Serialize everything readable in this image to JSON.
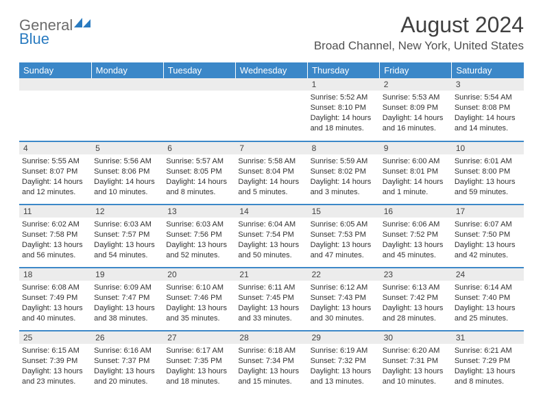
{
  "logo": {
    "part1": "General",
    "part2": "Blue"
  },
  "title": "August 2024",
  "location": "Broad Channel, New York, United States",
  "colors": {
    "header_bg": "#3b87c8",
    "header_text": "#ffffff",
    "daynum_bg": "#ececec",
    "logo_gray": "#6b6b6b",
    "logo_blue": "#2a7bc0"
  },
  "weekdays": [
    "Sunday",
    "Monday",
    "Tuesday",
    "Wednesday",
    "Thursday",
    "Friday",
    "Saturday"
  ],
  "weeks": [
    [
      null,
      null,
      null,
      null,
      {
        "day": "1",
        "sunrise": "5:52 AM",
        "sunset": "8:10 PM",
        "daylight": "14 hours and 18 minutes."
      },
      {
        "day": "2",
        "sunrise": "5:53 AM",
        "sunset": "8:09 PM",
        "daylight": "14 hours and 16 minutes."
      },
      {
        "day": "3",
        "sunrise": "5:54 AM",
        "sunset": "8:08 PM",
        "daylight": "14 hours and 14 minutes."
      }
    ],
    [
      {
        "day": "4",
        "sunrise": "5:55 AM",
        "sunset": "8:07 PM",
        "daylight": "14 hours and 12 minutes."
      },
      {
        "day": "5",
        "sunrise": "5:56 AM",
        "sunset": "8:06 PM",
        "daylight": "14 hours and 10 minutes."
      },
      {
        "day": "6",
        "sunrise": "5:57 AM",
        "sunset": "8:05 PM",
        "daylight": "14 hours and 8 minutes."
      },
      {
        "day": "7",
        "sunrise": "5:58 AM",
        "sunset": "8:04 PM",
        "daylight": "14 hours and 5 minutes."
      },
      {
        "day": "8",
        "sunrise": "5:59 AM",
        "sunset": "8:02 PM",
        "daylight": "14 hours and 3 minutes."
      },
      {
        "day": "9",
        "sunrise": "6:00 AM",
        "sunset": "8:01 PM",
        "daylight": "14 hours and 1 minute."
      },
      {
        "day": "10",
        "sunrise": "6:01 AM",
        "sunset": "8:00 PM",
        "daylight": "13 hours and 59 minutes."
      }
    ],
    [
      {
        "day": "11",
        "sunrise": "6:02 AM",
        "sunset": "7:58 PM",
        "daylight": "13 hours and 56 minutes."
      },
      {
        "day": "12",
        "sunrise": "6:03 AM",
        "sunset": "7:57 PM",
        "daylight": "13 hours and 54 minutes."
      },
      {
        "day": "13",
        "sunrise": "6:03 AM",
        "sunset": "7:56 PM",
        "daylight": "13 hours and 52 minutes."
      },
      {
        "day": "14",
        "sunrise": "6:04 AM",
        "sunset": "7:54 PM",
        "daylight": "13 hours and 50 minutes."
      },
      {
        "day": "15",
        "sunrise": "6:05 AM",
        "sunset": "7:53 PM",
        "daylight": "13 hours and 47 minutes."
      },
      {
        "day": "16",
        "sunrise": "6:06 AM",
        "sunset": "7:52 PM",
        "daylight": "13 hours and 45 minutes."
      },
      {
        "day": "17",
        "sunrise": "6:07 AM",
        "sunset": "7:50 PM",
        "daylight": "13 hours and 42 minutes."
      }
    ],
    [
      {
        "day": "18",
        "sunrise": "6:08 AM",
        "sunset": "7:49 PM",
        "daylight": "13 hours and 40 minutes."
      },
      {
        "day": "19",
        "sunrise": "6:09 AM",
        "sunset": "7:47 PM",
        "daylight": "13 hours and 38 minutes."
      },
      {
        "day": "20",
        "sunrise": "6:10 AM",
        "sunset": "7:46 PM",
        "daylight": "13 hours and 35 minutes."
      },
      {
        "day": "21",
        "sunrise": "6:11 AM",
        "sunset": "7:45 PM",
        "daylight": "13 hours and 33 minutes."
      },
      {
        "day": "22",
        "sunrise": "6:12 AM",
        "sunset": "7:43 PM",
        "daylight": "13 hours and 30 minutes."
      },
      {
        "day": "23",
        "sunrise": "6:13 AM",
        "sunset": "7:42 PM",
        "daylight": "13 hours and 28 minutes."
      },
      {
        "day": "24",
        "sunrise": "6:14 AM",
        "sunset": "7:40 PM",
        "daylight": "13 hours and 25 minutes."
      }
    ],
    [
      {
        "day": "25",
        "sunrise": "6:15 AM",
        "sunset": "7:39 PM",
        "daylight": "13 hours and 23 minutes."
      },
      {
        "day": "26",
        "sunrise": "6:16 AM",
        "sunset": "7:37 PM",
        "daylight": "13 hours and 20 minutes."
      },
      {
        "day": "27",
        "sunrise": "6:17 AM",
        "sunset": "7:35 PM",
        "daylight": "13 hours and 18 minutes."
      },
      {
        "day": "28",
        "sunrise": "6:18 AM",
        "sunset": "7:34 PM",
        "daylight": "13 hours and 15 minutes."
      },
      {
        "day": "29",
        "sunrise": "6:19 AM",
        "sunset": "7:32 PM",
        "daylight": "13 hours and 13 minutes."
      },
      {
        "day": "30",
        "sunrise": "6:20 AM",
        "sunset": "7:31 PM",
        "daylight": "13 hours and 10 minutes."
      },
      {
        "day": "31",
        "sunrise": "6:21 AM",
        "sunset": "7:29 PM",
        "daylight": "13 hours and 8 minutes."
      }
    ]
  ],
  "labels": {
    "sunrise": "Sunrise:",
    "sunset": "Sunset:",
    "daylight": "Daylight:"
  }
}
